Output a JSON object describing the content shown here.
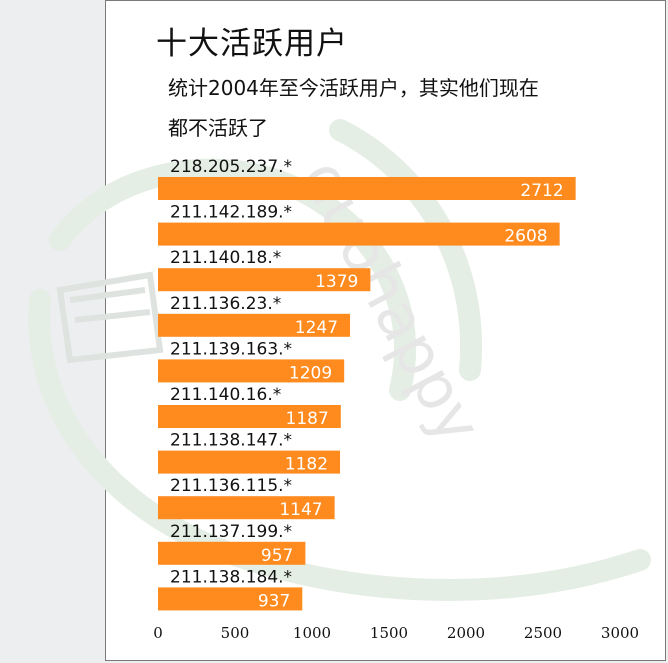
{
  "colors": {
    "bar": "#ff8a1e",
    "value_text": "#ffffff",
    "label_text": "#111111",
    "watermark": "#e3ece3"
  },
  "watermark": {
    "text": "duohappy"
  },
  "chart_data": {
    "type": "bar",
    "orientation": "horizontal",
    "title": "十大活跃用户",
    "subtitle": [
      "统计2004年至今活跃用户，其实他们现在",
      "都不活跃了"
    ],
    "categories": [
      "218.205.237.*",
      "211.142.189.*",
      "211.140.18.*",
      "211.136.23.*",
      "211.139.163.*",
      "211.140.16.*",
      "211.138.147.*",
      "211.136.115.*",
      "211.137.199.*",
      "211.138.184.*"
    ],
    "values": [
      2712,
      2608,
      1379,
      1247,
      1209,
      1187,
      1182,
      1147,
      957,
      937
    ],
    "value_labels": [
      "2712",
      "2608",
      "1379",
      "1247",
      "1209",
      "1187",
      "1182",
      "1147",
      "957",
      "937"
    ],
    "xlim": [
      0,
      3000
    ],
    "xticks": [
      0,
      500,
      1000,
      1500,
      2000,
      2500,
      3000
    ],
    "xtick_labels": [
      "0",
      "500",
      "1000",
      "1500",
      "2000",
      "2500",
      "3000"
    ],
    "grid": false,
    "legend": "none"
  }
}
